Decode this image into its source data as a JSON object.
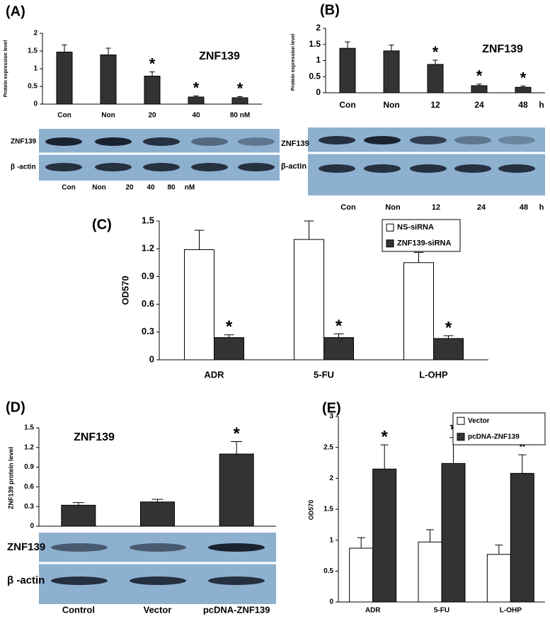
{
  "chart_data": [
    {
      "type": "bar",
      "panel": "(A)",
      "ylabel": "Protein expression level",
      "annotation": "ZNF139",
      "categories": [
        "Con",
        "Non",
        "20",
        "40",
        "80 nM"
      ],
      "values": [
        1.47,
        1.39,
        0.79,
        0.2,
        0.18
      ],
      "errors": [
        0.2,
        0.19,
        0.12,
        0.03,
        0.03
      ],
      "significance": [
        null,
        null,
        "*",
        "*",
        "*"
      ],
      "color": "#333333",
      "ylim": [
        0,
        2
      ],
      "yticks": [
        0,
        0.5,
        1,
        1.5,
        2
      ]
    },
    {
      "type": "bar",
      "panel": "(B)",
      "ylabel": "Protein expression level",
      "annotation": "ZNF139",
      "x_unit": "h",
      "categories": [
        "Con",
        "Non",
        "12",
        "24",
        "48"
      ],
      "values": [
        1.38,
        1.3,
        0.88,
        0.22,
        0.17
      ],
      "errors": [
        0.2,
        0.18,
        0.13,
        0.05,
        0.04
      ],
      "significance": [
        null,
        null,
        "*",
        "*",
        "*"
      ],
      "color": "#333333",
      "ylim": [
        0,
        2
      ],
      "yticks": [
        0,
        0.5,
        1,
        1.5,
        2
      ]
    },
    {
      "type": "bar",
      "panel": "(C)",
      "ylabel": "OD570",
      "categories": [
        "ADR",
        "5-FU",
        "L-OHP"
      ],
      "series": [
        {
          "name": "NS-siRNA",
          "color": "#ffffff",
          "values": [
            1.19,
            1.3,
            1.05
          ],
          "errors": [
            0.21,
            0.2,
            0.11
          ]
        },
        {
          "name": "ZNF139-siRNA",
          "color": "#333333",
          "values": [
            0.24,
            0.24,
            0.23
          ],
          "errors": [
            0.03,
            0.04,
            0.03
          ],
          "significance": [
            "*",
            "*",
            "*"
          ]
        }
      ],
      "ylim": [
        0,
        1.5
      ],
      "yticks": [
        0,
        0.3,
        0.6,
        0.9,
        1.2,
        1.5
      ]
    },
    {
      "type": "bar",
      "panel": "(D)",
      "ylabel": "ZNF139 protein level",
      "annotation": "ZNF139",
      "categories": [
        "Control",
        "Vector",
        "pcDNA-ZNF139"
      ],
      "values": [
        0.32,
        0.37,
        1.1
      ],
      "errors": [
        0.04,
        0.04,
        0.19
      ],
      "significance": [
        null,
        null,
        "*"
      ],
      "color": "#333333",
      "ylim": [
        0,
        1.5
      ],
      "yticks": [
        0,
        0.3,
        0.6,
        0.9,
        1.2,
        1.5
      ]
    },
    {
      "type": "bar",
      "panel": "(E)",
      "ylabel": "OD570",
      "categories": [
        "ADR",
        "5-FU",
        "L-OHP"
      ],
      "series": [
        {
          "name": "Vector",
          "color": "#ffffff",
          "values": [
            0.87,
            0.97,
            0.77
          ],
          "errors": [
            0.17,
            0.2,
            0.15
          ]
        },
        {
          "name": "pcDNA-ZNF139",
          "color": "#333333",
          "values": [
            2.15,
            2.24,
            2.08
          ],
          "errors": [
            0.39,
            0.42,
            0.3
          ],
          "significance": [
            "*",
            "*",
            "*"
          ]
        }
      ],
      "ylim": [
        0,
        3
      ],
      "yticks": [
        0,
        0.5,
        1,
        1.5,
        2,
        2.5,
        3
      ]
    }
  ],
  "blots": [
    {
      "labels": [
        "ZNF139",
        "β -actin"
      ],
      "lanes": [
        "Con",
        "Non",
        "20",
        "40",
        "80",
        "nM"
      ]
    },
    {
      "labels": [
        "ZNF139",
        "β-actin"
      ],
      "lanes": [
        "Con",
        "Non",
        "12",
        "24",
        "48",
        "h"
      ]
    },
    {
      "labels": [
        "ZNF139",
        "β -actin"
      ]
    }
  ]
}
